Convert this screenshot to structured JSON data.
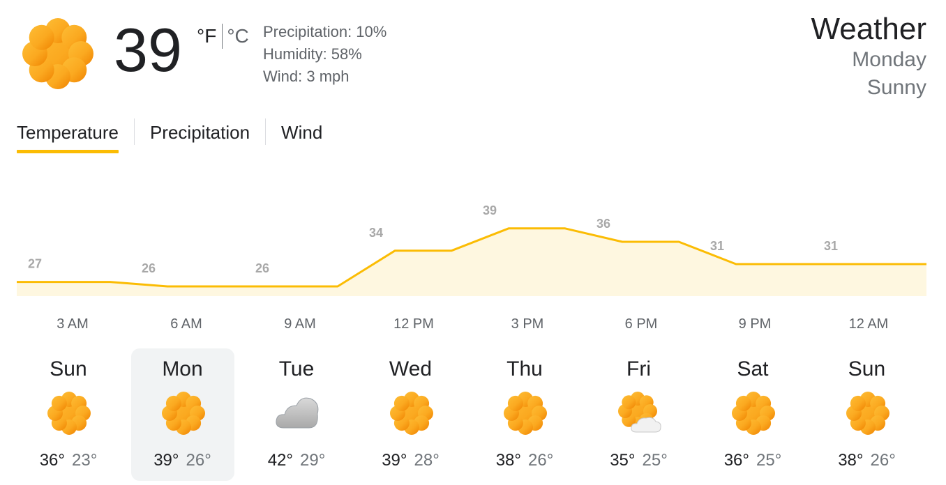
{
  "current": {
    "icon": "sun-icon",
    "temperature": "39",
    "unit_f": "°F",
    "unit_c": "°C",
    "precipitation": "Precipitation: 10%",
    "humidity": "Humidity: 58%",
    "wind": "Wind: 3 mph"
  },
  "header": {
    "title": "Weather",
    "day": "Monday",
    "condition": "Sunny"
  },
  "tabs": [
    {
      "label": "Temperature",
      "active": true
    },
    {
      "label": "Precipitation",
      "active": false
    },
    {
      "label": "Wind",
      "active": false
    }
  ],
  "colors": {
    "accent": "#fbbc04",
    "area_fill": "#fef7e0",
    "sun_light": "#fdb931",
    "sun_dark": "#f08a00"
  },
  "chart_data": {
    "type": "area",
    "x": [
      "3 AM",
      "6 AM",
      "9 AM",
      "12 PM",
      "3 PM",
      "6 PM",
      "9 PM",
      "12 AM"
    ],
    "values": [
      27,
      26,
      26,
      34,
      39,
      36,
      31,
      31
    ],
    "ylim": [
      22,
      42
    ],
    "grid": false
  },
  "forecast": [
    {
      "day": "Sun",
      "icon": "sun-icon",
      "high": "36°",
      "low": "23°",
      "selected": false
    },
    {
      "day": "Mon",
      "icon": "sun-icon",
      "high": "39°",
      "low": "26°",
      "selected": true
    },
    {
      "day": "Tue",
      "icon": "cloud-icon",
      "high": "42°",
      "low": "29°",
      "selected": false
    },
    {
      "day": "Wed",
      "icon": "sun-icon",
      "high": "39°",
      "low": "28°",
      "selected": false
    },
    {
      "day": "Thu",
      "icon": "sun-icon",
      "high": "38°",
      "low": "26°",
      "selected": false
    },
    {
      "day": "Fri",
      "icon": "partly-cloudy-icon",
      "high": "35°",
      "low": "25°",
      "selected": false
    },
    {
      "day": "Sat",
      "icon": "sun-icon",
      "high": "36°",
      "low": "25°",
      "selected": false
    },
    {
      "day": "Sun",
      "icon": "sun-icon",
      "high": "38°",
      "low": "26°",
      "selected": false
    }
  ]
}
